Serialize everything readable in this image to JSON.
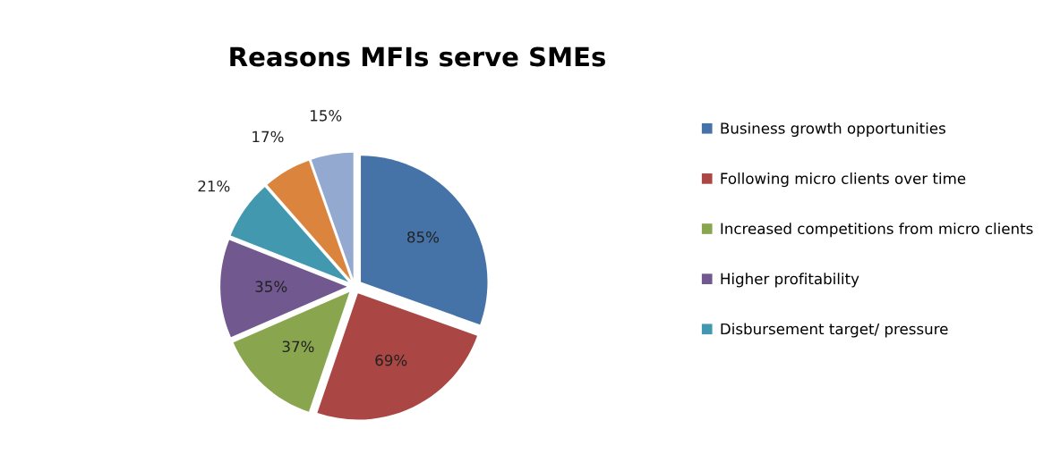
{
  "chart_data": {
    "type": "pie",
    "title": "Reasons MFIs serve SMEs",
    "categories": [
      "Business growth opportunities",
      "Following micro clients over time",
      "Increased competitions from micro clients",
      "Higher profitability",
      "Disbursement target/ pressure",
      null,
      null
    ],
    "values": [
      85,
      69,
      37,
      35,
      21,
      17,
      15
    ],
    "value_labels": [
      "85%",
      "69%",
      "37%",
      "35%",
      "21%",
      "17%",
      "15%"
    ],
    "colors": [
      "#4572a7",
      "#aa4643",
      "#89a54e",
      "#71588f",
      "#4198af",
      "#db843d",
      "#93a9cf"
    ],
    "legend": "right"
  }
}
